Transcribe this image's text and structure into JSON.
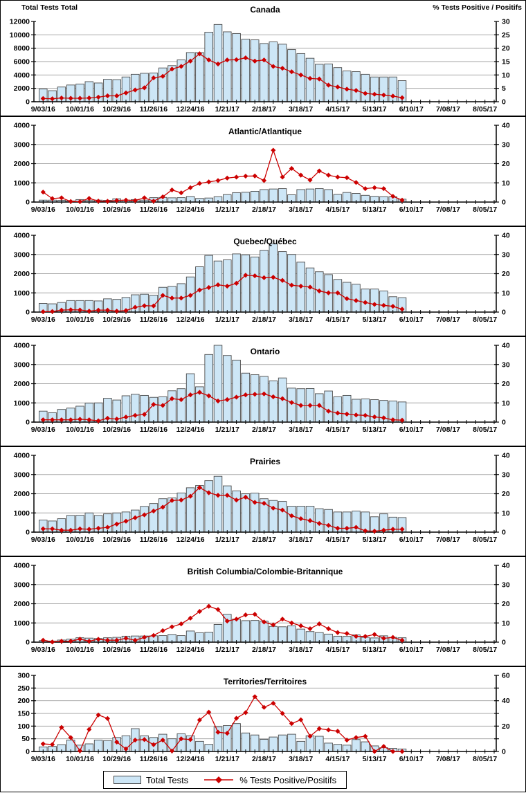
{
  "headers": {
    "left": "Total Tests Total",
    "right": "% Tests Positive / Positifs"
  },
  "legend": {
    "total_tests": "Total Tests",
    "pct_positive": "% Tests Positive/Positifs"
  },
  "colors": {
    "bar_fill": "#CDE6F6",
    "bar_stroke": "#4A4A4A",
    "line": "#CC0000",
    "grid": "#A6A6A6",
    "axis": "#000000"
  },
  "x_axis": {
    "labels": [
      "9/03/16",
      "10/01/16",
      "10/29/16",
      "11/26/16",
      "12/24/16",
      "1/21/17",
      "2/18/17",
      "3/18/17",
      "4/15/17",
      "5/13/17",
      "6/10/17",
      "7/08/17",
      "8/05/17"
    ],
    "weeks_between_labels": 4,
    "data_weeks": 40,
    "axis_weeks": 50
  },
  "chart_data": [
    {
      "type": "bar+line",
      "id": "canada",
      "panel": "canada",
      "title": "Canada",
      "left_axis": {
        "max": 12000,
        "step": 2000,
        "label": "Total Tests Total"
      },
      "right_axis": {
        "max": 30,
        "label_step": 5,
        "tick_step": 5,
        "label": "% Tests Positive / Positifs"
      },
      "series": [
        {
          "name": "Total Tests",
          "values": [
            1900,
            1650,
            2200,
            2500,
            2650,
            3000,
            2800,
            3350,
            3300,
            3700,
            4100,
            4250,
            4300,
            5050,
            5400,
            6250,
            7350,
            7350,
            10400,
            11550,
            10450,
            10200,
            9350,
            9250,
            8700,
            8950,
            8600,
            7800,
            7200,
            6500,
            5600,
            5650,
            5100,
            4600,
            4500,
            4100,
            3700,
            3700,
            3700,
            3150
          ]
        },
        {
          "name": "% Tests Positive/Positifs",
          "values": [
            1.2,
            1.1,
            1.4,
            1.3,
            1.3,
            1.4,
            1.7,
            2.2,
            2.2,
            3.3,
            4.4,
            5.2,
            8.9,
            9.5,
            12.2,
            13.2,
            15.2,
            17.9,
            15.6,
            14.1,
            15.6,
            15.7,
            16.4,
            15.2,
            15.6,
            13.2,
            12.5,
            11.2,
            10,
            8.7,
            8.5,
            6.2,
            5.5,
            4.7,
            4.2,
            3.1,
            2.8,
            2.5,
            2.1,
            1.5
          ]
        }
      ]
    },
    {
      "type": "bar+line",
      "id": "atlantic",
      "panel": "mid",
      "title": "Atlantic/Atlantique",
      "left_axis": {
        "max": 4000,
        "step": 1000
      },
      "right_axis": {
        "max": 40,
        "label_step": 10,
        "tick_step": 10
      },
      "series": [
        {
          "name": "Total Tests",
          "values": [
            100,
            100,
            90,
            60,
            130,
            80,
            100,
            90,
            170,
            100,
            130,
            100,
            230,
            240,
            220,
            230,
            290,
            190,
            210,
            280,
            390,
            490,
            510,
            560,
            650,
            680,
            700,
            380,
            650,
            680,
            700,
            650,
            400,
            500,
            450,
            350,
            300,
            280,
            280,
            150
          ]
        },
        {
          "name": "% Tests Positive/Positifs",
          "values": [
            5.2,
            1.8,
            2.2,
            0.3,
            0.2,
            1.9,
            0.5,
            0.4,
            0.8,
            1.0,
            0.8,
            2.2,
            0.5,
            2.7,
            6.3,
            4.8,
            7.5,
            9.7,
            10.5,
            11.2,
            12.5,
            13.0,
            13.5,
            13.6,
            11.2,
            27.0,
            13.0,
            17.5,
            14.0,
            11.5,
            16.2,
            14.0,
            13.0,
            12.7,
            10.2,
            7.0,
            7.5,
            7.0,
            3.0,
            1.0
          ]
        }
      ]
    },
    {
      "type": "bar+line",
      "id": "quebec",
      "panel": "mid",
      "title": "Quebec/Québec",
      "left_axis": {
        "max": 4000,
        "step": 1000
      },
      "right_axis": {
        "max": 40,
        "label_step": 10,
        "tick_step": 10
      },
      "series": [
        {
          "name": "Total Tests",
          "values": [
            450,
            430,
            500,
            600,
            600,
            600,
            580,
            690,
            660,
            760,
            900,
            930,
            880,
            1290,
            1340,
            1480,
            1830,
            2360,
            2950,
            2660,
            2720,
            3030,
            2980,
            2870,
            3220,
            3560,
            3150,
            3000,
            2600,
            2300,
            2100,
            1950,
            1700,
            1550,
            1450,
            1200,
            1200,
            1100,
            800,
            750
          ]
        },
        {
          "name": "% Tests Positive/Positifs",
          "values": [
            0.2,
            0.3,
            1.0,
            1.2,
            1.1,
            0.5,
            1.0,
            1.0,
            0.5,
            0.8,
            2.5,
            3.3,
            3.2,
            8.7,
            7.3,
            7.3,
            8.7,
            11.5,
            12.8,
            14.2,
            13.5,
            15.0,
            19.2,
            18.9,
            17.9,
            18.1,
            16.5,
            14.0,
            13.5,
            13.0,
            11.0,
            10.0,
            10.0,
            7.0,
            6.0,
            5.0,
            4.0,
            3.5,
            3.0,
            1.5
          ]
        }
      ]
    },
    {
      "type": "bar+line",
      "id": "ontario",
      "panel": "mid",
      "title": "Ontario",
      "left_axis": {
        "max": 4000,
        "step": 1000
      },
      "right_axis": {
        "max": 40,
        "label_step": 10,
        "tick_step": 10
      },
      "series": [
        {
          "name": "Total Tests",
          "values": [
            570,
            490,
            660,
            730,
            830,
            990,
            1000,
            1240,
            1150,
            1370,
            1450,
            1390,
            1290,
            1320,
            1630,
            1740,
            2520,
            1840,
            3520,
            4000,
            3470,
            3230,
            2550,
            2470,
            2380,
            2150,
            2300,
            1770,
            1740,
            1750,
            1480,
            1620,
            1320,
            1390,
            1190,
            1210,
            1170,
            1130,
            1100,
            1050
          ]
        },
        {
          "name": "% Tests Positive/Positifs",
          "values": [
            1.2,
            1.2,
            1.2,
            1.2,
            1.5,
            1.2,
            0.7,
            2.0,
            1.6,
            2.6,
            3.5,
            4.0,
            9.2,
            8.7,
            12.2,
            11.7,
            14.2,
            15.5,
            13.7,
            11.0,
            11.7,
            13.0,
            14.2,
            14.5,
            14.7,
            13.2,
            12.2,
            10.2,
            8.7,
            8.7,
            8.7,
            5.7,
            4.7,
            4.2,
            3.7,
            3.5,
            2.7,
            2.2,
            1.2,
            1.0
          ]
        }
      ]
    },
    {
      "type": "bar+line",
      "id": "prairies",
      "panel": "mid",
      "title": "Prairies",
      "left_axis": {
        "max": 4000,
        "step": 1000
      },
      "right_axis": {
        "max": 40,
        "label_step": 10,
        "tick_step": 10
      },
      "series": [
        {
          "name": "Total Tests",
          "values": [
            630,
            580,
            700,
            870,
            880,
            1000,
            870,
            950,
            1000,
            1050,
            1150,
            1340,
            1490,
            1740,
            1780,
            2040,
            2310,
            2430,
            2680,
            2910,
            2410,
            2150,
            2000,
            2030,
            1740,
            1650,
            1600,
            1350,
            1350,
            1350,
            1220,
            1180,
            1050,
            1050,
            1100,
            1050,
            800,
            950,
            780,
            760
          ]
        },
        {
          "name": "% Tests Positive/Positifs",
          "values": [
            1.7,
            1.7,
            1.0,
            1.0,
            1.7,
            1.5,
            2.0,
            2.5,
            4.2,
            5.7,
            7.5,
            9.0,
            11.0,
            13.0,
            16.5,
            16.7,
            18.7,
            23.2,
            20.5,
            19.2,
            19.2,
            16.7,
            18.2,
            15.5,
            15.0,
            12.5,
            11.5,
            8.5,
            7.0,
            6.0,
            4.5,
            3.5,
            2.0,
            2.0,
            2.5,
            0.7,
            0.5,
            1.0,
            1.5,
            1.5
          ]
        }
      ]
    },
    {
      "type": "bar+line",
      "id": "bc",
      "panel": "mid",
      "title": "British Columbia/Colombie-Britannique",
      "left_axis": {
        "max": 4000,
        "step": 1000
      },
      "right_axis": {
        "max": 40,
        "label_step": 10,
        "tick_step": 10
      },
      "series": [
        {
          "name": "Total Tests",
          "values": [
            80,
            60,
            110,
            160,
            230,
            210,
            190,
            230,
            250,
            310,
            320,
            320,
            330,
            340,
            400,
            340,
            580,
            490,
            520,
            920,
            1450,
            1200,
            1120,
            1130,
            1100,
            820,
            800,
            850,
            680,
            550,
            500,
            420,
            310,
            300,
            380,
            250,
            220,
            330,
            250,
            230
          ]
        },
        {
          "name": "% Tests Positive/Positifs",
          "values": [
            1.0,
            0.1,
            0.5,
            0.5,
            1.6,
            0.5,
            1.5,
            1.0,
            1.0,
            2.0,
            1.0,
            2.5,
            3.5,
            6.0,
            8.0,
            9.5,
            12.5,
            16.0,
            18.7,
            17.0,
            11.0,
            12.0,
            14.2,
            14.5,
            10.5,
            9.0,
            12.0,
            10.0,
            8.5,
            7.0,
            9.5,
            7.0,
            5.0,
            4.5,
            3.0,
            3.0,
            4.0,
            2.0,
            2.5,
            1.0
          ]
        }
      ]
    },
    {
      "type": "bar+line",
      "id": "territories",
      "panel": "terr",
      "title": "Territories/Territoires",
      "left_axis": {
        "max": 300,
        "step": 50
      },
      "right_axis": {
        "max": 60,
        "label_step": 20,
        "tick_step": 10
      },
      "series": [
        {
          "name": "Total Tests",
          "values": [
            18,
            20,
            27,
            45,
            25,
            30,
            45,
            43,
            55,
            62,
            90,
            62,
            55,
            68,
            50,
            70,
            62,
            40,
            28,
            97,
            102,
            110,
            73,
            65,
            48,
            57,
            65,
            68,
            40,
            62,
            60,
            33,
            28,
            25,
            47,
            38,
            22,
            15,
            12,
            10
          ]
        },
        {
          "name": "% Tests Positive/Positifs",
          "values": [
            6,
            5.5,
            19,
            11,
            0.5,
            17.4,
            28.8,
            26,
            7.4,
            2,
            9,
            9.4,
            5.4,
            9,
            0.4,
            10,
            9.4,
            24.8,
            31,
            15.2,
            14.4,
            26.2,
            30.6,
            43.2,
            34.8,
            38,
            30,
            22,
            25,
            12,
            18,
            17,
            16,
            9,
            11,
            12,
            0,
            4,
            0,
            0
          ]
        }
      ]
    }
  ]
}
